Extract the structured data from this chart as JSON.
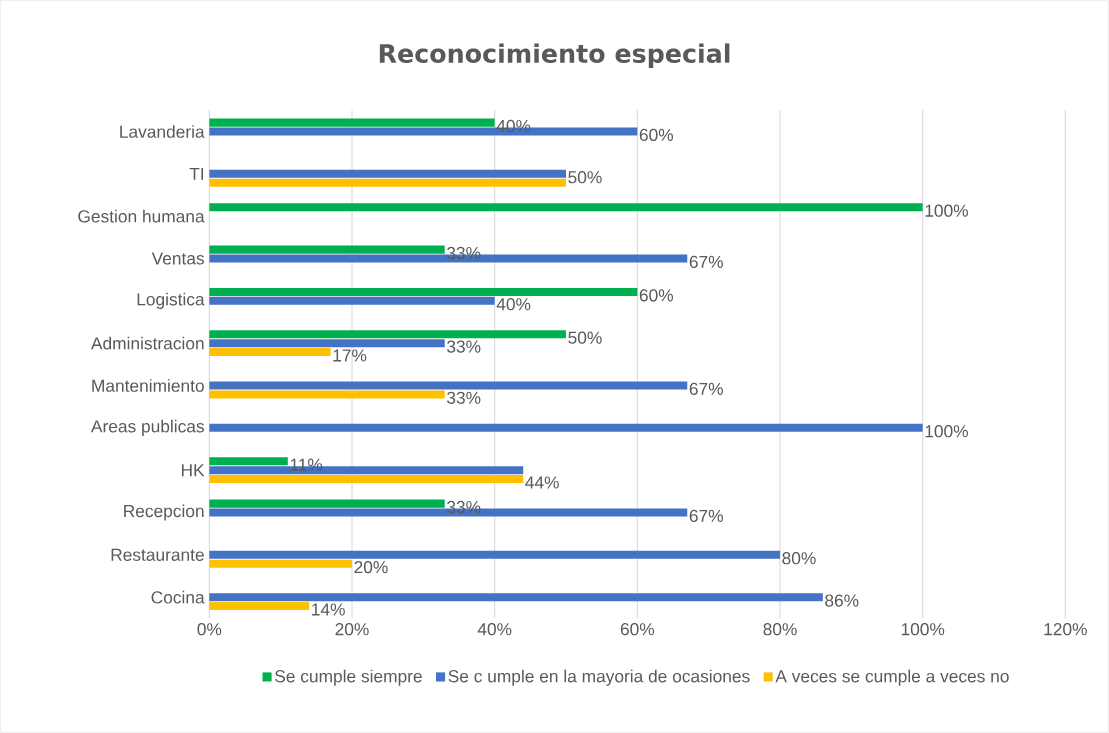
{
  "chart_data": {
    "type": "bar",
    "orientation": "horizontal",
    "title": "Reconocimiento especial",
    "categories": [
      "Lavanderia",
      "TI",
      "Gestion humana",
      "Ventas",
      "Logistica",
      "Administracion",
      "Mantenimiento",
      "Areas publicas",
      "HK",
      "Recepcion",
      "Restaurante",
      "Cocina"
    ],
    "series": [
      {
        "name": "Se cumple siempre",
        "color": "#00b050",
        "values": [
          40,
          null,
          100,
          33,
          60,
          50,
          null,
          null,
          11,
          33,
          null,
          null
        ],
        "value_labels": [
          "40%",
          null,
          "100%",
          "33%",
          "60%",
          "50%",
          null,
          null,
          "11%",
          "33%",
          null,
          null
        ]
      },
      {
        "name": "Se c umple en la mayoria de ocasiones",
        "color": "#4472c4",
        "values": [
          60,
          50,
          null,
          67,
          40,
          33,
          67,
          100,
          44,
          67,
          80,
          86
        ],
        "value_labels": [
          "60%",
          "50%",
          null,
          "67%",
          "40%",
          "33%",
          "67%",
          "100%",
          null,
          "67%",
          "80%",
          "86%"
        ]
      },
      {
        "name": "A veces se cumple a veces no",
        "color": "#ffc000",
        "values": [
          null,
          50,
          null,
          null,
          null,
          17,
          33,
          null,
          44,
          null,
          20,
          14
        ],
        "value_labels": [
          null,
          null,
          null,
          null,
          null,
          "17%",
          "33%",
          null,
          "44%",
          null,
          "20%",
          "14%"
        ]
      }
    ],
    "xlim": [
      0,
      120
    ],
    "xticks": [
      {
        "value": 0,
        "label": "0%"
      },
      {
        "value": 20,
        "label": "20%"
      },
      {
        "value": 40,
        "label": "40%"
      },
      {
        "value": 60,
        "label": "60%"
      },
      {
        "value": 80,
        "label": "80%"
      },
      {
        "value": 100,
        "label": "100%"
      },
      {
        "value": 120,
        "label": "120%"
      }
    ],
    "grid": "x",
    "legend": "bottom"
  }
}
